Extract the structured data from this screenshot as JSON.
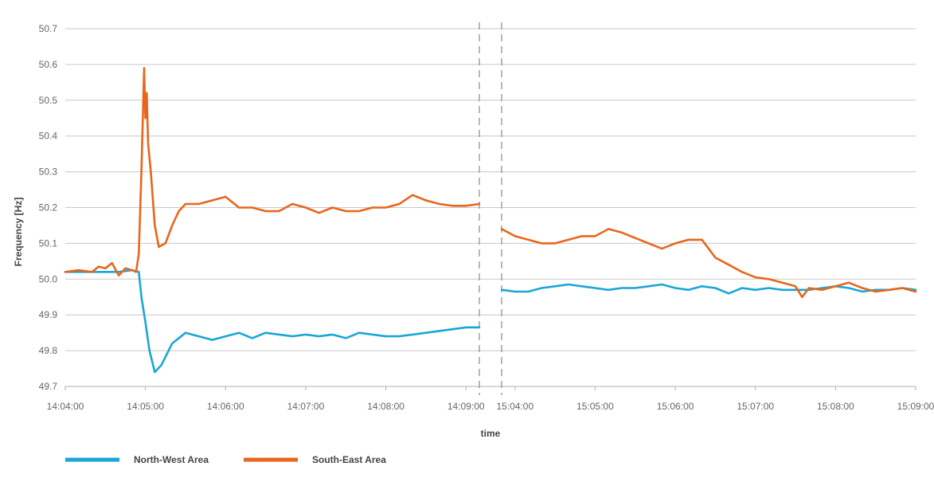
{
  "chart_data": {
    "type": "line",
    "title": "",
    "xlabel": "time",
    "ylabel": "Frequency [Hz]",
    "ylim": [
      49.7,
      50.7
    ],
    "y_ticks": [
      "49.7",
      "49.8",
      "49.9",
      "50.0",
      "50.1",
      "50.2",
      "50.3",
      "50.4",
      "50.5",
      "50.6",
      "50.7"
    ],
    "grid": "horizontal",
    "legend_position": "bottom-left",
    "colors": {
      "North-West Area": "#1aa6d6",
      "South-East Area": "#e8661c",
      "grid": "#c8c8c8",
      "divider": "#888888"
    },
    "panels": [
      {
        "x_ticks": [
          "14:04:00",
          "14:05:00",
          "14:06:00",
          "14:07:00",
          "14:08:00",
          "14:09:00"
        ],
        "xlim": [
          "14:04:00",
          "14:09:10"
        ],
        "series": [
          {
            "name": "North-West Area",
            "points": [
              [
                "14:04:00",
                50.02
              ],
              [
                "14:04:10",
                50.02
              ],
              [
                "14:04:20",
                50.02
              ],
              [
                "14:04:30",
                50.02
              ],
              [
                "14:04:40",
                50.02
              ],
              [
                "14:04:50",
                50.025
              ],
              [
                "14:04:55",
                50.02
              ],
              [
                "14:04:57",
                49.95
              ],
              [
                "14:05:00",
                49.88
              ],
              [
                "14:05:03",
                49.8
              ],
              [
                "14:05:07",
                49.74
              ],
              [
                "14:05:12",
                49.76
              ],
              [
                "14:05:20",
                49.82
              ],
              [
                "14:05:30",
                49.85
              ],
              [
                "14:05:40",
                49.84
              ],
              [
                "14:05:50",
                49.83
              ],
              [
                "14:06:00",
                49.84
              ],
              [
                "14:06:10",
                49.85
              ],
              [
                "14:06:20",
                49.835
              ],
              [
                "14:06:30",
                49.85
              ],
              [
                "14:06:40",
                49.845
              ],
              [
                "14:06:50",
                49.84
              ],
              [
                "14:07:00",
                49.845
              ],
              [
                "14:07:10",
                49.84
              ],
              [
                "14:07:20",
                49.845
              ],
              [
                "14:07:30",
                49.835
              ],
              [
                "14:07:40",
                49.85
              ],
              [
                "14:07:50",
                49.845
              ],
              [
                "14:08:00",
                49.84
              ],
              [
                "14:08:10",
                49.84
              ],
              [
                "14:08:20",
                49.845
              ],
              [
                "14:08:30",
                49.85
              ],
              [
                "14:08:40",
                49.855
              ],
              [
                "14:08:50",
                49.86
              ],
              [
                "14:09:00",
                49.865
              ],
              [
                "14:09:10",
                49.865
              ]
            ]
          },
          {
            "name": "South-East Area",
            "points": [
              [
                "14:04:00",
                50.02
              ],
              [
                "14:04:10",
                50.025
              ],
              [
                "14:04:20",
                50.02
              ],
              [
                "14:04:25",
                50.035
              ],
              [
                "14:04:30",
                50.03
              ],
              [
                "14:04:35",
                50.045
              ],
              [
                "14:04:40",
                50.01
              ],
              [
                "14:04:45",
                50.03
              ],
              [
                "14:04:50",
                50.025
              ],
              [
                "14:04:53",
                50.02
              ],
              [
                "14:04:55",
                50.07
              ],
              [
                "14:04:57",
                50.3
              ],
              [
                "14:04:59",
                50.59
              ],
              [
                "14:05:00",
                50.45
              ],
              [
                "14:05:01",
                50.52
              ],
              [
                "14:05:02",
                50.38
              ],
              [
                "14:05:04",
                50.3
              ],
              [
                "14:05:07",
                50.15
              ],
              [
                "14:05:10",
                50.09
              ],
              [
                "14:05:15",
                50.1
              ],
              [
                "14:05:20",
                50.15
              ],
              [
                "14:05:25",
                50.19
              ],
              [
                "14:05:30",
                50.21
              ],
              [
                "14:05:40",
                50.21
              ],
              [
                "14:05:50",
                50.22
              ],
              [
                "14:06:00",
                50.23
              ],
              [
                "14:06:10",
                50.2
              ],
              [
                "14:06:20",
                50.2
              ],
              [
                "14:06:30",
                50.19
              ],
              [
                "14:06:40",
                50.19
              ],
              [
                "14:06:50",
                50.21
              ],
              [
                "14:07:00",
                50.2
              ],
              [
                "14:07:10",
                50.185
              ],
              [
                "14:07:20",
                50.2
              ],
              [
                "14:07:30",
                50.19
              ],
              [
                "14:07:40",
                50.19
              ],
              [
                "14:07:50",
                50.2
              ],
              [
                "14:08:00",
                50.2
              ],
              [
                "14:08:10",
                50.21
              ],
              [
                "14:08:20",
                50.235
              ],
              [
                "14:08:30",
                50.22
              ],
              [
                "14:08:40",
                50.21
              ],
              [
                "14:08:50",
                50.205
              ],
              [
                "14:09:00",
                50.205
              ],
              [
                "14:09:10",
                50.21
              ]
            ]
          }
        ]
      },
      {
        "x_ticks": [
          "15:04:00",
          "15:05:00",
          "15:06:00",
          "15:07:00",
          "15:08:00",
          "15:09:00"
        ],
        "xlim": [
          "15:03:50",
          "15:09:00"
        ],
        "series": [
          {
            "name": "North-West Area",
            "points": [
              [
                "15:03:50",
                49.97
              ],
              [
                "15:04:00",
                49.965
              ],
              [
                "15:04:10",
                49.965
              ],
              [
                "15:04:20",
                49.975
              ],
              [
                "15:04:30",
                49.98
              ],
              [
                "15:04:40",
                49.985
              ],
              [
                "15:04:50",
                49.98
              ],
              [
                "15:05:00",
                49.975
              ],
              [
                "15:05:10",
                49.97
              ],
              [
                "15:05:20",
                49.975
              ],
              [
                "15:05:30",
                49.975
              ],
              [
                "15:05:40",
                49.98
              ],
              [
                "15:05:50",
                49.985
              ],
              [
                "15:06:00",
                49.975
              ],
              [
                "15:06:10",
                49.97
              ],
              [
                "15:06:20",
                49.98
              ],
              [
                "15:06:30",
                49.975
              ],
              [
                "15:06:40",
                49.96
              ],
              [
                "15:06:50",
                49.975
              ],
              [
                "15:07:00",
                49.97
              ],
              [
                "15:07:10",
                49.975
              ],
              [
                "15:07:20",
                49.97
              ],
              [
                "15:07:30",
                49.97
              ],
              [
                "15:07:40",
                49.97
              ],
              [
                "15:07:50",
                49.975
              ],
              [
                "15:08:00",
                49.98
              ],
              [
                "15:08:10",
                49.975
              ],
              [
                "15:08:20",
                49.965
              ],
              [
                "15:08:30",
                49.97
              ],
              [
                "15:08:40",
                49.97
              ],
              [
                "15:08:50",
                49.975
              ],
              [
                "15:09:00",
                49.97
              ]
            ]
          },
          {
            "name": "South-East Area",
            "points": [
              [
                "15:03:50",
                50.14
              ],
              [
                "15:04:00",
                50.12
              ],
              [
                "15:04:10",
                50.11
              ],
              [
                "15:04:20",
                50.1
              ],
              [
                "15:04:30",
                50.1
              ],
              [
                "15:04:40",
                50.11
              ],
              [
                "15:04:50",
                50.12
              ],
              [
                "15:05:00",
                50.12
              ],
              [
                "15:05:10",
                50.14
              ],
              [
                "15:05:20",
                50.13
              ],
              [
                "15:05:30",
                50.115
              ],
              [
                "15:05:40",
                50.1
              ],
              [
                "15:05:50",
                50.085
              ],
              [
                "15:06:00",
                50.1
              ],
              [
                "15:06:10",
                50.11
              ],
              [
                "15:06:20",
                50.11
              ],
              [
                "15:06:30",
                50.06
              ],
              [
                "15:06:40",
                50.04
              ],
              [
                "15:06:50",
                50.02
              ],
              [
                "15:07:00",
                50.005
              ],
              [
                "15:07:10",
                50.0
              ],
              [
                "15:07:20",
                49.99
              ],
              [
                "15:07:30",
                49.98
              ],
              [
                "15:07:35",
                49.95
              ],
              [
                "15:07:40",
                49.975
              ],
              [
                "15:07:50",
                49.97
              ],
              [
                "15:08:00",
                49.98
              ],
              [
                "15:08:10",
                49.99
              ],
              [
                "15:08:20",
                49.975
              ],
              [
                "15:08:30",
                49.965
              ],
              [
                "15:08:40",
                49.97
              ],
              [
                "15:08:50",
                49.975
              ],
              [
                "15:09:00",
                49.965
              ]
            ]
          }
        ]
      }
    ],
    "legend": [
      {
        "label": "North-West Area",
        "color": "#1aa6d6"
      },
      {
        "label": "South-East Area",
        "color": "#e8661c"
      }
    ]
  }
}
